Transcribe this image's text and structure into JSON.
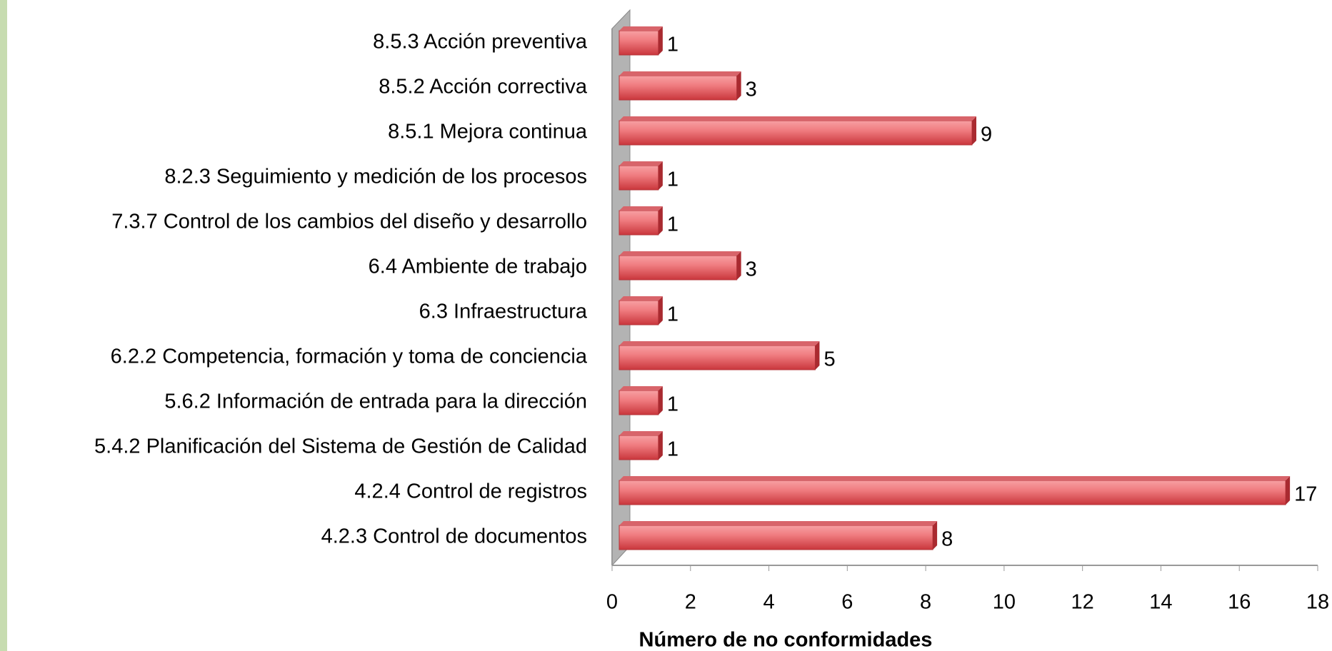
{
  "chart_data": {
    "type": "bar",
    "orientation": "horizontal",
    "xlabel": "Número de no conformidades",
    "categories": [
      "8.5.3 Acción preventiva",
      "8.5.2 Acción correctiva",
      "8.5.1 Mejora continua",
      "8.2.3 Seguimiento y medición de los procesos",
      "7.3.7 Control de los cambios del diseño y desarrollo",
      "6.4 Ambiente de trabajo",
      "6.3 Infraestructura",
      "6.2.2 Competencia, formación y toma de conciencia",
      "5.6.2 Información de entrada para la dirección",
      "5.4.2 Planificación del Sistema de Gestión de Calidad",
      "4.2.4 Control de registros",
      "4.2.3 Control de documentos"
    ],
    "values": [
      1,
      3,
      9,
      1,
      1,
      3,
      1,
      5,
      1,
      1,
      17,
      8
    ],
    "color": "#e8555a",
    "xlim": [
      0,
      18
    ],
    "xticks": [
      0,
      2,
      4,
      6,
      8,
      10,
      12,
      14,
      16,
      18
    ],
    "grid": false
  }
}
